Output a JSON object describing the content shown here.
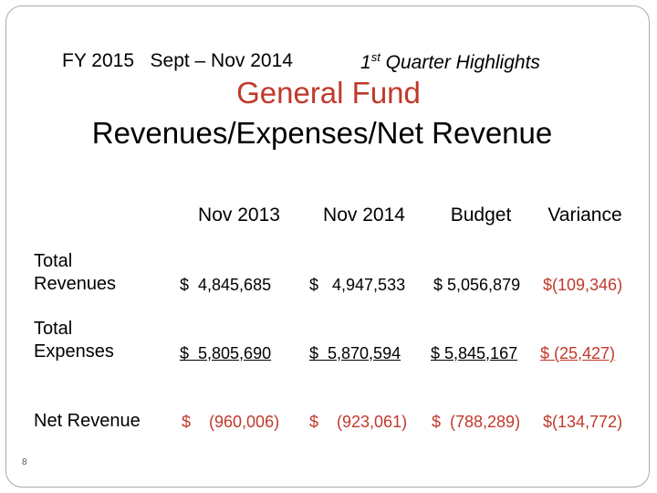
{
  "header": {
    "period": "FY 2015   Sept – Nov 2014",
    "quarter_number": "1",
    "quarter_suffix": "st",
    "quarter_text": "Quarter Highlights"
  },
  "title": {
    "line1": "General Fund",
    "line2": "Revenues/Expenses/Net Revenue"
  },
  "table": {
    "columns": [
      "Nov 2013",
      "Nov 2014",
      "Budget",
      "Variance"
    ],
    "rows": [
      {
        "label": "Total Revenues",
        "cells": [
          "$  4,845,685",
          "$   4,947,533",
          "$ 5,056,879",
          "$(109,346)"
        ]
      },
      {
        "label": "Total Expenses",
        "cells": [
          "$  5,805,690",
          "$  5,870,594",
          "$ 5,845,167",
          "$ (25,427)"
        ]
      },
      {
        "label": "Net Revenue",
        "cells": [
          "$    (960,006)",
          "$    (923,061)",
          "$  (788,289)",
          "$(134,772)"
        ]
      }
    ]
  },
  "page_number": "8"
}
